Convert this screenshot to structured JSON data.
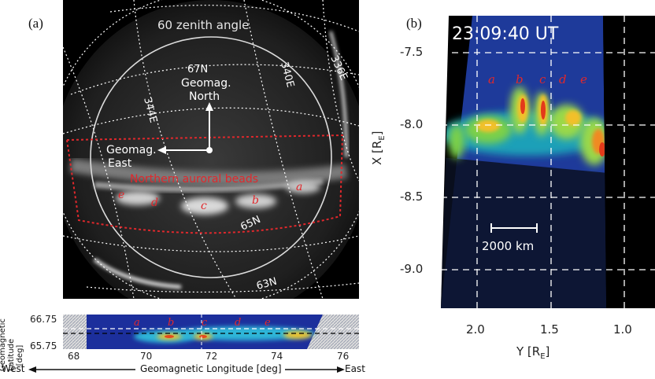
{
  "panel_a": {
    "label": "(a)",
    "zenith_label": "60 zenith angle",
    "lat_labels": [
      "67N",
      "65N",
      "63N"
    ],
    "lon_labels": [
      "344E",
      "340E",
      "336E"
    ],
    "north_label_1": "Geomag.",
    "north_label_2": "North",
    "east_label_1": "Geomag.",
    "east_label_2": "East",
    "beads_title": "Northern auroral beads",
    "beads": [
      "a",
      "b",
      "c",
      "d",
      "e"
    ],
    "colors": {
      "box": "#e0282c",
      "grid": "#ffffff"
    }
  },
  "keogram": {
    "ylabel_1": "Geomagnetic",
    "ylabel_2": "Latitude [deg]",
    "yticks": [
      "66.75",
      "65.75"
    ],
    "xticks": [
      "68",
      "70",
      "72",
      "74",
      "76"
    ],
    "xlabel": "Geomagnetic Longitude [deg]",
    "west": "West",
    "east": "East",
    "beads": [
      "a",
      "b",
      "c",
      "d",
      "e"
    ]
  },
  "panel_b": {
    "label": "(b)",
    "time": "23:09:40 UT",
    "yticks": [
      "-7.5",
      "-8.0",
      "-8.5",
      "-9.0"
    ],
    "xticks": [
      "2.0",
      "1.5",
      "1.0"
    ],
    "ylabel": "X [R",
    "ylabel_sub": "E",
    "ylabel_end": "]",
    "xlabel": "Y [R",
    "xlabel_sub": "E",
    "xlabel_end": "]",
    "scale_label": "2000 km",
    "beads": [
      "a",
      "b",
      "c",
      "d",
      "e"
    ]
  }
}
